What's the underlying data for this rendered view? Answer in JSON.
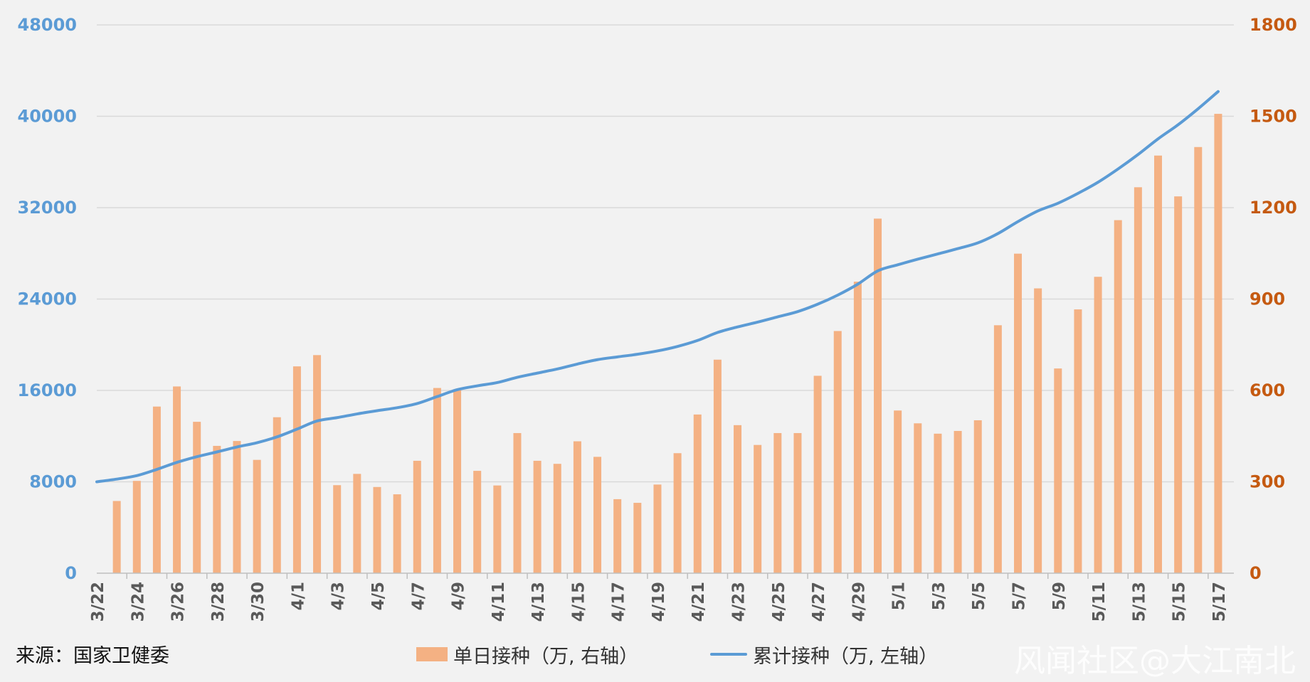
{
  "chart_data": {
    "type": "bar+line",
    "title": "",
    "xlabel": "",
    "categories": [
      "3/22",
      "3/23",
      "3/24",
      "3/25",
      "3/26",
      "3/27",
      "3/28",
      "3/29",
      "3/30",
      "3/31",
      "4/1",
      "4/2",
      "4/3",
      "4/4",
      "4/5",
      "4/6",
      "4/7",
      "4/8",
      "4/9",
      "4/10",
      "4/11",
      "4/12",
      "4/13",
      "4/14",
      "4/15",
      "4/16",
      "4/17",
      "4/18",
      "4/19",
      "4/20",
      "4/21",
      "4/22",
      "4/23",
      "4/24",
      "4/25",
      "4/26",
      "4/27",
      "4/28",
      "4/29",
      "4/30",
      "5/1",
      "5/2",
      "5/3",
      "5/4",
      "5/5",
      "5/6",
      "5/7",
      "5/8",
      "5/9",
      "5/10",
      "5/11",
      "5/12",
      "5/13",
      "5/14",
      "5/15",
      "5/16",
      "5/17"
    ],
    "x_tick_labels": [
      "3/22",
      "3/24",
      "3/26",
      "3/28",
      "3/30",
      "4/1",
      "4/3",
      "4/5",
      "4/7",
      "4/9",
      "4/11",
      "4/13",
      "4/15",
      "4/17",
      "4/19",
      "4/21",
      "4/23",
      "4/25",
      "4/27",
      "4/29",
      "5/1",
      "5/3",
      "5/5",
      "5/7",
      "5/9",
      "5/11",
      "5/13",
      "5/15",
      "5/17"
    ],
    "y_left": {
      "ylim": [
        0,
        48000
      ],
      "ticks": [
        "0",
        "8000",
        "16000",
        "24000",
        "32000",
        "40000",
        "48000"
      ],
      "color": "#5b9bd5"
    },
    "y_right": {
      "ylim": [
        0,
        1800
      ],
      "ticks": [
        "0",
        "300",
        "600",
        "900",
        "1200",
        "1500",
        "1800"
      ],
      "color": "#c55a11"
    },
    "grid": true,
    "legend_position": "bottom",
    "series": [
      {
        "name": "单日接种（万, 右轴）",
        "kind": "bar",
        "axis": "right",
        "color": "#f4b183",
        "values": [
          0,
          237,
          303,
          547,
          613,
          497,
          418,
          434,
          372,
          512,
          679,
          716,
          289,
          326,
          283,
          259,
          369,
          608,
          603,
          336,
          288,
          460,
          369,
          359,
          433,
          382,
          243,
          231,
          291,
          394,
          521,
          701,
          486,
          421,
          460,
          460,
          648,
          795,
          957,
          1164,
          534,
          492,
          458,
          467,
          502,
          814,
          1049,
          935,
          672,
          866,
          973,
          1159,
          1267,
          1371,
          1237,
          1399,
          1508
        ]
      },
      {
        "name": "累计接种（万, 左轴）",
        "kind": "line",
        "axis": "left",
        "color": "#5b9bd5",
        "values": [
          8000,
          8237,
          8540,
          9087,
          9700,
          10197,
          10615,
          11049,
          11421,
          11933,
          12612,
          13328,
          13617,
          13943,
          14226,
          14485,
          14854,
          15462,
          16065,
          16401,
          16689,
          17149,
          17518,
          17877,
          18310,
          18692,
          18935,
          19166,
          19457,
          19851,
          20372,
          21073,
          21559,
          21980,
          22440,
          22900,
          23548,
          24343,
          25300,
          26464,
          26998,
          27490,
          27948,
          28415,
          28917,
          29731,
          30780,
          31715,
          32387,
          33253,
          34226,
          35385,
          36652,
          38023,
          39260,
          40659,
          42167
        ]
      }
    ]
  },
  "footer": {
    "source": "来源：国家卫健委",
    "watermark": "风闻社区@大江南北"
  }
}
